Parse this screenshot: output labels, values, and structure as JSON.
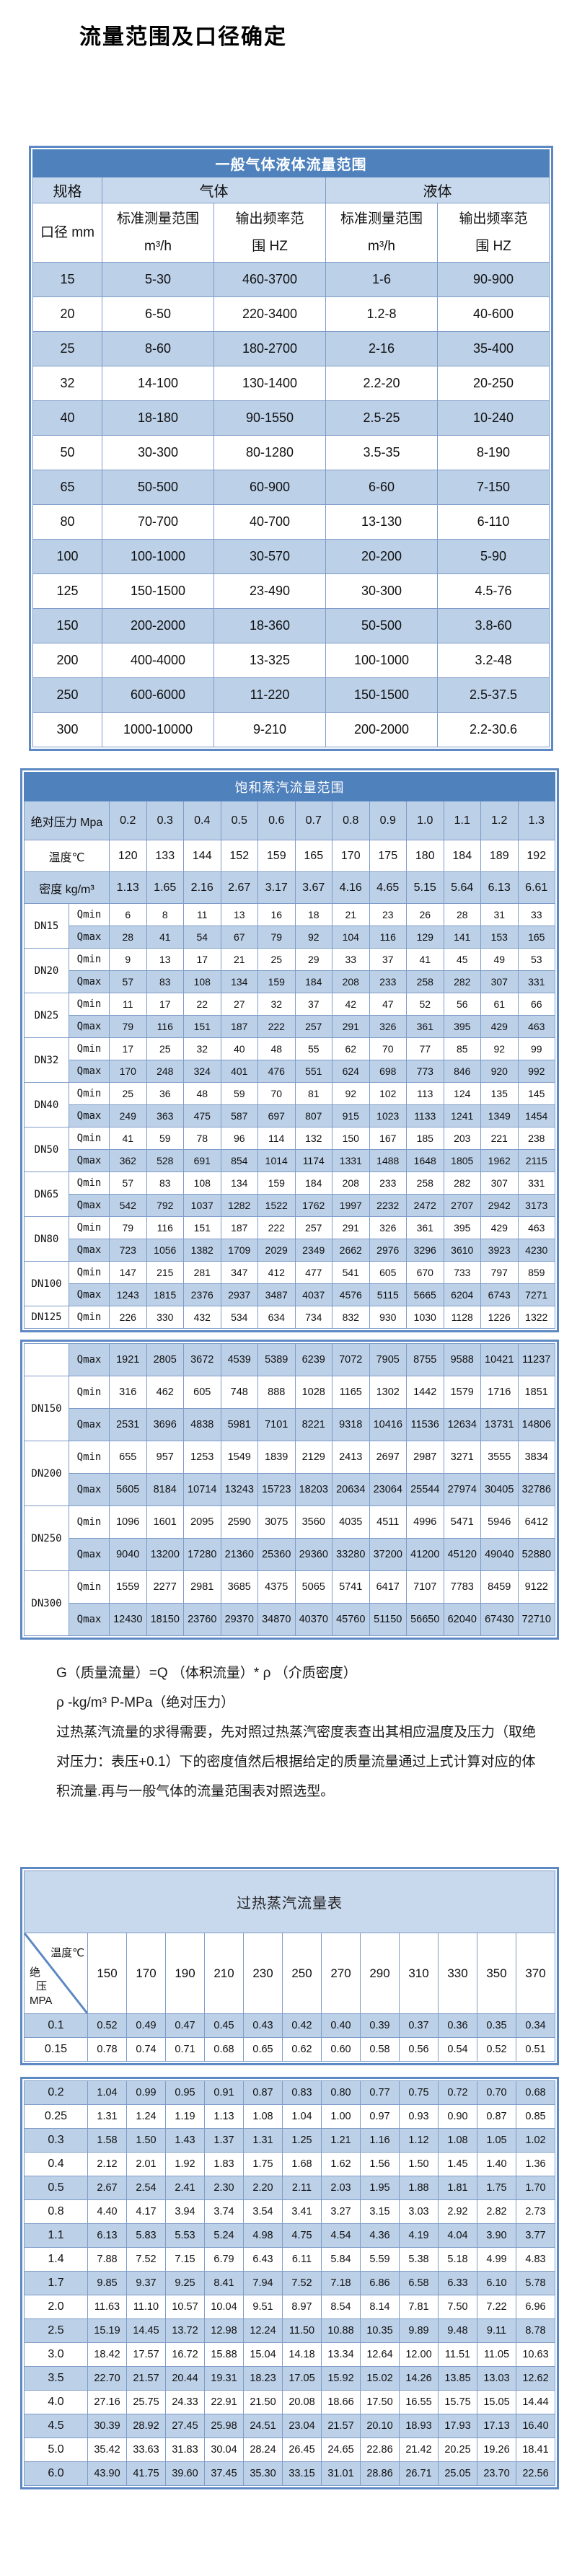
{
  "page_title": "流量范围及口径确定",
  "colors": {
    "header_blue": "#4f81bd",
    "row_blue": "#bcd0e8",
    "border_blue": "#7e9cc8",
    "frame_blue": "#5c88c4"
  },
  "general": {
    "title": "一般气体液体流量范围",
    "header": {
      "spec": "规格",
      "gas": "气体",
      "liquid": "液体",
      "diameter": "口径 mm",
      "std_range": "标准测量范围",
      "std_unit": "m³/h",
      "freq_line1": "输出频率范",
      "freq_line2": "围 HZ"
    },
    "rows": [
      [
        "15",
        "5-30",
        "460-3700",
        "1-6",
        "90-900"
      ],
      [
        "20",
        "6-50",
        "220-3400",
        "1.2-8",
        "40-600"
      ],
      [
        "25",
        "8-60",
        "180-2700",
        "2-16",
        "35-400"
      ],
      [
        "32",
        "14-100",
        "130-1400",
        "2.2-20",
        "20-250"
      ],
      [
        "40",
        "18-180",
        "90-1550",
        "2.5-25",
        "10-240"
      ],
      [
        "50",
        "30-300",
        "80-1280",
        "3.5-35",
        "8-190"
      ],
      [
        "65",
        "50-500",
        "60-900",
        "6-60",
        "7-150"
      ],
      [
        "80",
        "70-700",
        "40-700",
        "13-130",
        "6-110"
      ],
      [
        "100",
        "100-1000",
        "30-570",
        "20-200",
        "5-90"
      ],
      [
        "125",
        "150-1500",
        "23-490",
        "30-300",
        "4.5-76"
      ],
      [
        "150",
        "200-2000",
        "18-360",
        "50-500",
        "3.8-60"
      ],
      [
        "200",
        "400-4000",
        "13-325",
        "100-1000",
        "3.2-48"
      ],
      [
        "250",
        "600-6000",
        "11-220",
        "150-1500",
        "2.5-37.5"
      ],
      [
        "300",
        "1000-10000",
        "9-210",
        "200-2000",
        "2.2-30.6"
      ]
    ]
  },
  "saturated": {
    "title": "饱和蒸汽流量范围",
    "pressure_label": "绝对压力 Mpa",
    "pressure": [
      "0.2",
      "0.3",
      "0.4",
      "0.5",
      "0.6",
      "0.7",
      "0.8",
      "0.9",
      "1.0",
      "1.1",
      "1.2",
      "1.3"
    ],
    "temp_label": "温度℃",
    "temp": [
      "120",
      "133",
      "144",
      "152",
      "159",
      "165",
      "170",
      "175",
      "180",
      "184",
      "189",
      "192"
    ],
    "density_label": "密度 kg/m³",
    "density": [
      "1.13",
      "1.65",
      "2.16",
      "2.67",
      "3.17",
      "3.67",
      "4.16",
      "4.65",
      "5.15",
      "5.64",
      "6.13",
      "6.61"
    ],
    "qmin_label": "Qmin",
    "qmax_label": "Qmax",
    "block1": [
      {
        "dn": "DN15",
        "qmin": [
          "6",
          "8",
          "11",
          "13",
          "16",
          "18",
          "21",
          "23",
          "26",
          "28",
          "31",
          "33"
        ],
        "qmax": [
          "28",
          "41",
          "54",
          "67",
          "79",
          "92",
          "104",
          "116",
          "129",
          "141",
          "153",
          "165"
        ]
      },
      {
        "dn": "DN20",
        "qmin": [
          "9",
          "13",
          "17",
          "21",
          "25",
          "29",
          "33",
          "37",
          "41",
          "45",
          "49",
          "53"
        ],
        "qmax": [
          "57",
          "83",
          "108",
          "134",
          "159",
          "184",
          "208",
          "233",
          "258",
          "282",
          "307",
          "331"
        ]
      },
      {
        "dn": "DN25",
        "qmin": [
          "11",
          "17",
          "22",
          "27",
          "32",
          "37",
          "42",
          "47",
          "52",
          "56",
          "61",
          "66"
        ],
        "qmax": [
          "79",
          "116",
          "151",
          "187",
          "222",
          "257",
          "291",
          "326",
          "361",
          "395",
          "429",
          "463"
        ]
      },
      {
        "dn": "DN32",
        "qmin": [
          "17",
          "25",
          "32",
          "40",
          "48",
          "55",
          "62",
          "70",
          "77",
          "85",
          "92",
          "99"
        ],
        "qmax": [
          "170",
          "248",
          "324",
          "401",
          "476",
          "551",
          "624",
          "698",
          "773",
          "846",
          "920",
          "992"
        ]
      },
      {
        "dn": "DN40",
        "qmin": [
          "25",
          "36",
          "48",
          "59",
          "70",
          "81",
          "92",
          "102",
          "113",
          "124",
          "135",
          "145"
        ],
        "qmax": [
          "249",
          "363",
          "475",
          "587",
          "697",
          "807",
          "915",
          "1023",
          "1133",
          "1241",
          "1349",
          "1454"
        ]
      },
      {
        "dn": "DN50",
        "qmin": [
          "41",
          "59",
          "78",
          "96",
          "114",
          "132",
          "150",
          "167",
          "185",
          "203",
          "221",
          "238"
        ],
        "qmax": [
          "362",
          "528",
          "691",
          "854",
          "1014",
          "1174",
          "1331",
          "1488",
          "1648",
          "1805",
          "1962",
          "2115"
        ]
      },
      {
        "dn": "DN65",
        "qmin": [
          "57",
          "83",
          "108",
          "134",
          "159",
          "184",
          "208",
          "233",
          "258",
          "282",
          "307",
          "331"
        ],
        "qmax": [
          "542",
          "792",
          "1037",
          "1282",
          "1522",
          "1762",
          "1997",
          "2232",
          "2472",
          "2707",
          "2942",
          "3173"
        ]
      },
      {
        "dn": "DN80",
        "qmin": [
          "79",
          "116",
          "151",
          "187",
          "222",
          "257",
          "291",
          "326",
          "361",
          "395",
          "429",
          "463"
        ],
        "qmax": [
          "723",
          "1056",
          "1382",
          "1709",
          "2029",
          "2349",
          "2662",
          "2976",
          "3296",
          "3610",
          "3923",
          "4230"
        ]
      },
      {
        "dn": "DN100",
        "qmin": [
          "147",
          "215",
          "281",
          "347",
          "412",
          "477",
          "541",
          "605",
          "670",
          "733",
          "797",
          "859"
        ],
        "qmax": [
          "1243",
          "1815",
          "2376",
          "2937",
          "3487",
          "4037",
          "4576",
          "5115",
          "5665",
          "6204",
          "6743",
          "7271"
        ]
      },
      {
        "dn": "DN125",
        "qmin": [
          "226",
          "330",
          "432",
          "534",
          "634",
          "734",
          "832",
          "930",
          "1030",
          "1128",
          "1226",
          "1322"
        ]
      }
    ],
    "block2_orphan_qmax": [
      "1921",
      "2805",
      "3672",
      "4539",
      "5389",
      "6239",
      "7072",
      "7905",
      "8755",
      "9588",
      "10421",
      "11237"
    ],
    "block2": [
      {
        "dn": "DN150",
        "qmin": [
          "316",
          "462",
          "605",
          "748",
          "888",
          "1028",
          "1165",
          "1302",
          "1442",
          "1579",
          "1716",
          "1851"
        ],
        "qmax": [
          "2531",
          "3696",
          "4838",
          "5981",
          "7101",
          "8221",
          "9318",
          "10416",
          "11536",
          "12634",
          "13731",
          "14806"
        ]
      },
      {
        "dn": "DN200",
        "qmin": [
          "655",
          "957",
          "1253",
          "1549",
          "1839",
          "2129",
          "2413",
          "2697",
          "2987",
          "3271",
          "3555",
          "3834"
        ],
        "qmax": [
          "5605",
          "8184",
          "10714",
          "13243",
          "15723",
          "18203",
          "20634",
          "23064",
          "25544",
          "27974",
          "30405",
          "32786"
        ]
      },
      {
        "dn": "DN250",
        "qmin": [
          "1096",
          "1601",
          "2095",
          "2590",
          "3075",
          "3560",
          "4035",
          "4511",
          "4996",
          "5471",
          "5946",
          "6412"
        ],
        "qmax": [
          "9040",
          "13200",
          "17280",
          "21360",
          "25360",
          "29360",
          "33280",
          "37200",
          "41200",
          "45120",
          "49040",
          "52880"
        ]
      },
      {
        "dn": "DN300",
        "qmin": [
          "1559",
          "2277",
          "2981",
          "3685",
          "4375",
          "5065",
          "5741",
          "6417",
          "7107",
          "7783",
          "8459",
          "9122"
        ],
        "qmax": [
          "12430",
          "18150",
          "23760",
          "29370",
          "34870",
          "40370",
          "45760",
          "51150",
          "56650",
          "62040",
          "67430",
          "72710"
        ]
      }
    ]
  },
  "notes": {
    "line1": "G（质量流量）=Q （体积流量）* ρ （介质密度）",
    "line2": "ρ -kg/m³ P-MPa（绝对压力）",
    "para1": "过热蒸汽流量的求得需要，先对照过热蒸汽密度表查出其相应温度及压力（取绝",
    "para2": "对压力：表压+0.1）下的密度值然后根据给定的质量流量通过上式计算对应的体",
    "para3": "积流量.再与一般气体的流量范围表对照选型。"
  },
  "superheated": {
    "title": "过热蒸汽流量表",
    "corner_top": "温度℃",
    "corner_bottom_1": "绝",
    "corner_bottom_2": "压",
    "corner_bottom_3": "MPA",
    "temps": [
      "150",
      "170",
      "190",
      "210",
      "230",
      "250",
      "270",
      "290",
      "310",
      "330",
      "350",
      "370"
    ],
    "block1": [
      {
        "p": "0.1",
        "v": [
          "0.52",
          "0.49",
          "0.47",
          "0.45",
          "0.43",
          "0.42",
          "0.40",
          "0.39",
          "0.37",
          "0.36",
          "0.35",
          "0.34"
        ]
      },
      {
        "p": "0.15",
        "v": [
          "0.78",
          "0.74",
          "0.71",
          "0.68",
          "0.65",
          "0.62",
          "0.60",
          "0.58",
          "0.56",
          "0.54",
          "0.52",
          "0.51"
        ]
      }
    ],
    "block2": [
      {
        "p": "0.2",
        "v": [
          "1.04",
          "0.99",
          "0.95",
          "0.91",
          "0.87",
          "0.83",
          "0.80",
          "0.77",
          "0.75",
          "0.72",
          "0.70",
          "0.68"
        ]
      },
      {
        "p": "0.25",
        "v": [
          "1.31",
          "1.24",
          "1.19",
          "1.13",
          "1.08",
          "1.04",
          "1.00",
          "0.97",
          "0.93",
          "0.90",
          "0.87",
          "0.85"
        ]
      },
      {
        "p": "0.3",
        "v": [
          "1.58",
          "1.50",
          "1.43",
          "1.37",
          "1.31",
          "1.25",
          "1.21",
          "1.16",
          "1.12",
          "1.08",
          "1.05",
          "1.02"
        ]
      },
      {
        "p": "0.4",
        "v": [
          "2.12",
          "2.01",
          "1.92",
          "1.83",
          "1.75",
          "1.68",
          "1.62",
          "1.56",
          "1.50",
          "1.45",
          "1.40",
          "1.36"
        ]
      },
      {
        "p": "0.5",
        "v": [
          "2.67",
          "2.54",
          "2.41",
          "2.30",
          "2.20",
          "2.11",
          "2.03",
          "1.95",
          "1.88",
          "1.81",
          "1.75",
          "1.70"
        ]
      },
      {
        "p": "0.8",
        "v": [
          "4.40",
          "4.17",
          "3.94",
          "3.74",
          "3.54",
          "3.41",
          "3.27",
          "3.15",
          "3.03",
          "2.92",
          "2.82",
          "2.73"
        ]
      },
      {
        "p": "1.1",
        "v": [
          "6.13",
          "5.83",
          "5.53",
          "5.24",
          "4.98",
          "4.75",
          "4.54",
          "4.36",
          "4.19",
          "4.04",
          "3.90",
          "3.77"
        ]
      },
      {
        "p": "1.4",
        "v": [
          "7.88",
          "7.52",
          "7.15",
          "6.79",
          "6.43",
          "6.11",
          "5.84",
          "5.59",
          "5.38",
          "5.18",
          "4.99",
          "4.83"
        ]
      },
      {
        "p": "1.7",
        "v": [
          "9.85",
          "9.37",
          "9.25",
          "8.41",
          "7.94",
          "7.52",
          "7.18",
          "6.86",
          "6.58",
          "6.33",
          "6.10",
          "5.78"
        ]
      },
      {
        "p": "2.0",
        "v": [
          "11.63",
          "11.10",
          "10.57",
          "10.04",
          "9.51",
          "8.97",
          "8.54",
          "8.14",
          "7.81",
          "7.50",
          "7.22",
          "6.96"
        ]
      },
      {
        "p": "2.5",
        "v": [
          "15.19",
          "14.45",
          "13.72",
          "12.98",
          "12.24",
          "11.50",
          "10.88",
          "10.35",
          "9.89",
          "9.48",
          "9.11",
          "8.78"
        ]
      },
      {
        "p": "3.0",
        "v": [
          "18.42",
          "17.57",
          "16.72",
          "15.88",
          "15.04",
          "14.18",
          "13.34",
          "12.64",
          "12.00",
          "11.51",
          "11.05",
          "10.63"
        ]
      },
      {
        "p": "3.5",
        "v": [
          "22.70",
          "21.57",
          "20.44",
          "19.31",
          "18.23",
          "17.05",
          "15.92",
          "15.02",
          "14.26",
          "13.85",
          "13.03",
          "12.62"
        ]
      },
      {
        "p": "4.0",
        "v": [
          "27.16",
          "25.75",
          "24.33",
          "22.91",
          "21.50",
          "20.08",
          "18.66",
          "17.50",
          "16.55",
          "15.75",
          "15.05",
          "14.44"
        ]
      },
      {
        "p": "4.5",
        "v": [
          "30.39",
          "28.92",
          "27.45",
          "25.98",
          "24.51",
          "23.04",
          "21.57",
          "20.10",
          "18.93",
          "17.93",
          "17.13",
          "16.40"
        ]
      },
      {
        "p": "5.0",
        "v": [
          "35.42",
          "33.63",
          "31.83",
          "30.04",
          "28.24",
          "26.45",
          "24.65",
          "22.86",
          "21.42",
          "20.25",
          "19.26",
          "18.41"
        ]
      },
      {
        "p": "6.0",
        "v": [
          "43.90",
          "41.75",
          "39.60",
          "37.45",
          "35.30",
          "33.15",
          "31.01",
          "28.86",
          "26.71",
          "25.05",
          "23.70",
          "22.56"
        ]
      }
    ]
  }
}
